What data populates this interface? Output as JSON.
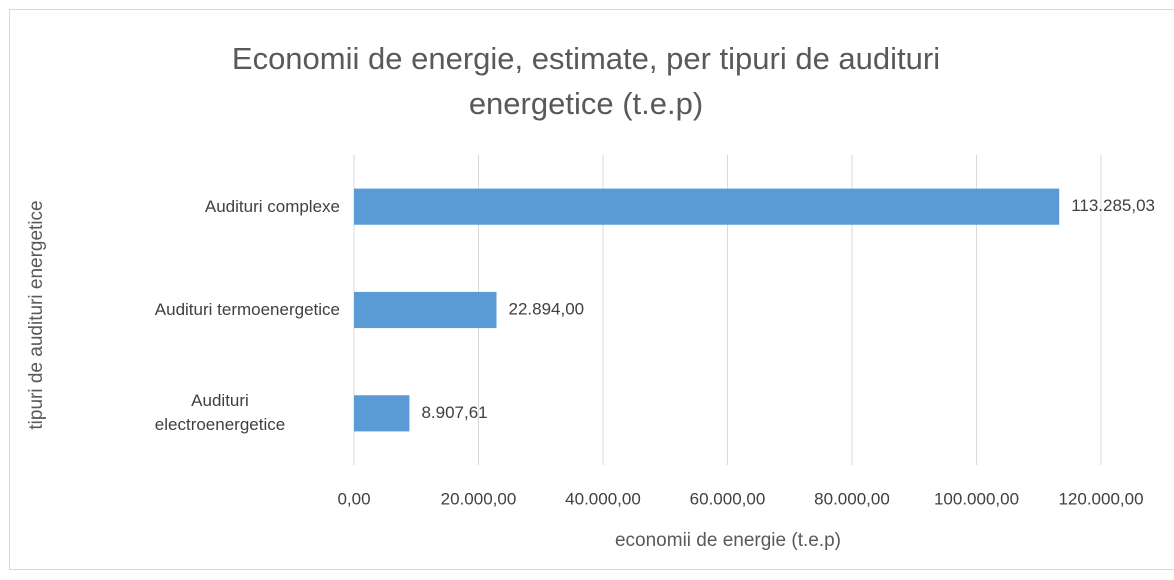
{
  "chart_data": {
    "type": "bar",
    "orientation": "horizontal",
    "title": "Economii de energie, estimate, per tipuri de audituri energetice (t.e.p)",
    "x_label": "economii de energie (t.e.p)",
    "y_label": "tipuri de audituri energetice",
    "categories": [
      "Audituri complexe",
      "Audituri termoenergetice",
      "Audituri electroenergetice"
    ],
    "values": [
      113285.03,
      22894.0,
      8907.61
    ],
    "value_labels": [
      "113.285,03",
      "22.894,00",
      "8.907,61"
    ],
    "color": "#5b9bd5",
    "xlim": [
      0,
      120000
    ],
    "xticks": [
      {
        "value": 0,
        "label": "0,00"
      },
      {
        "value": 20000,
        "label": "20.000,00"
      },
      {
        "value": 40000,
        "label": "40.000,00"
      },
      {
        "value": 60000,
        "label": "60.000,00"
      },
      {
        "value": 80000,
        "label": "80.000,00"
      },
      {
        "value": 100000,
        "label": "100.000,00"
      },
      {
        "value": 120000,
        "label": "120.000,00"
      }
    ],
    "grid": true
  }
}
